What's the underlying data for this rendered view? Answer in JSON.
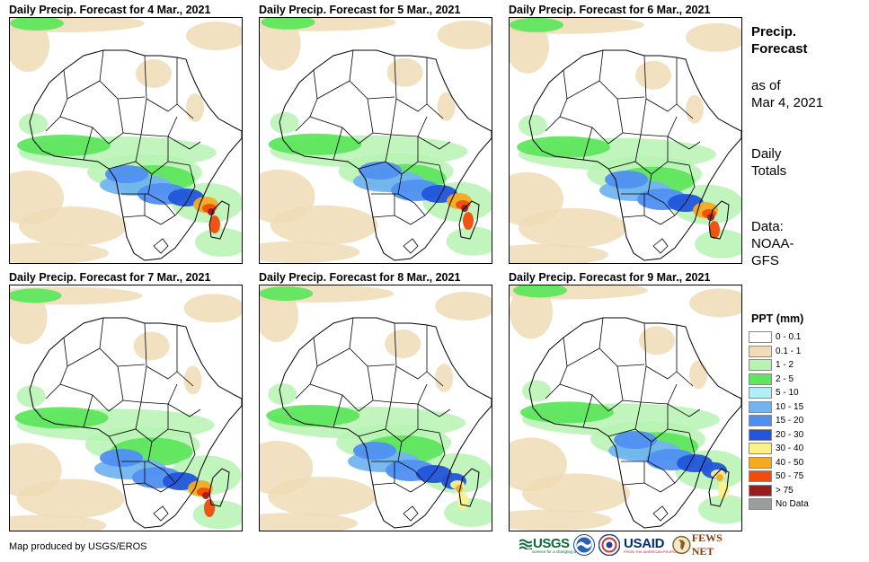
{
  "panels": [
    {
      "title": "Daily Precip. Forecast for 4 Mar., 2021",
      "peak_level": 1.0
    },
    {
      "title": "Daily Precip. Forecast for 5 Mar., 2021",
      "peak_level": 0.95
    },
    {
      "title": "Daily Precip. Forecast for 6 Mar., 2021",
      "peak_level": 0.9
    },
    {
      "title": "Daily Precip. Forecast for 7 Mar., 2021",
      "peak_level": 0.95
    },
    {
      "title": "Daily Precip. Forecast for 8 Mar., 2021",
      "peak_level": 0.8
    },
    {
      "title": "Daily Precip. Forecast for 9 Mar., 2021",
      "peak_level": 0.75
    }
  ],
  "side": {
    "title_line1": "Precip.",
    "title_line2": "Forecast",
    "asof_line1": "as of",
    "asof_line2": "Mar 4, 2021",
    "totals_line1": "Daily",
    "totals_line2": "Totals",
    "data_line1": "Data:",
    "data_line2": "NOAA-",
    "data_line3": "GFS"
  },
  "legend": {
    "title": "PPT (mm)",
    "items": [
      {
        "label": "0 - 0.1",
        "color": "#ffffff"
      },
      {
        "label": "0.1 - 1",
        "color": "#f0dcb6"
      },
      {
        "label": "1 - 2",
        "color": "#b6f3b1"
      },
      {
        "label": "2 - 5",
        "color": "#5ee65e"
      },
      {
        "label": "5 - 10",
        "color": "#b2eef6"
      },
      {
        "label": "10 - 15",
        "color": "#73b4f0"
      },
      {
        "label": "15 - 20",
        "color": "#4f8ff2"
      },
      {
        "label": "20 - 30",
        "color": "#2255d9"
      },
      {
        "label": "30 - 40",
        "color": "#fcf08a"
      },
      {
        "label": "40 - 50",
        "color": "#f5aa20"
      },
      {
        "label": "50 - 75",
        "color": "#f24b0a"
      },
      {
        "label": "> 75",
        "color": "#9b1c1c"
      },
      {
        "label": "No Data",
        "color": "#9c9c9c"
      }
    ]
  },
  "credit": "Map produced by USGS/EROS",
  "logos": {
    "usgs": "USGS",
    "usgs_tagline": "science for a changing world",
    "usaid": "USAID",
    "usaid_tagline": "FROM THE AMERICAN PEOPLE",
    "fewsnet": "FEWS NET"
  }
}
